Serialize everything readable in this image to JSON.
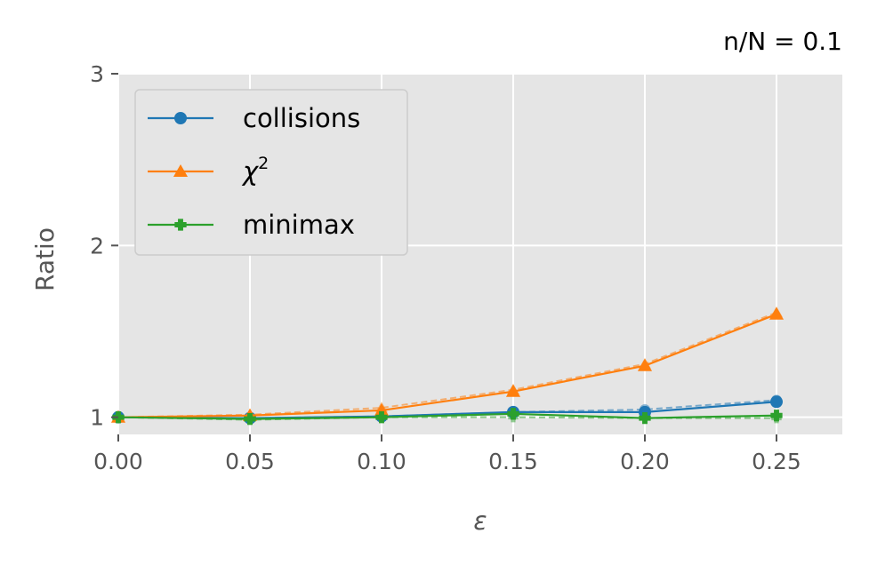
{
  "chart_data": {
    "type": "line",
    "title": "n/N = 0.1",
    "xlabel": "ε",
    "ylabel": "Ratio",
    "xlim": [
      0.0,
      0.275
    ],
    "ylim": [
      0.9,
      3.0
    ],
    "xticks": [
      0.0,
      0.05,
      0.1,
      0.15,
      0.2,
      0.25
    ],
    "xtick_labels": [
      "0.00",
      "0.05",
      "0.10",
      "0.15",
      "0.20",
      "0.25"
    ],
    "yticks": [
      1,
      2,
      3
    ],
    "ytick_labels": [
      "1",
      "2",
      "3"
    ],
    "grid": true,
    "legend_position": "top-left",
    "x": [
      0.0,
      0.05,
      0.1,
      0.15,
      0.2,
      0.25
    ],
    "series": [
      {
        "name": "collisions",
        "name_base": "collisions",
        "name_sup": "",
        "color": "#1f77b4",
        "marker": "circle",
        "values": [
          1.0,
          0.995,
          1.005,
          1.03,
          1.03,
          1.09
        ],
        "dashed_values": [
          1.0,
          0.995,
          1.005,
          1.03,
          1.045,
          1.1
        ]
      },
      {
        "name": "χ²",
        "name_base": "χ",
        "name_sup": "2",
        "color": "#ff7f0e",
        "marker": "triangle",
        "values": [
          1.0,
          1.01,
          1.04,
          1.15,
          1.3,
          1.6
        ],
        "dashed_values": [
          1.0,
          1.015,
          1.055,
          1.16,
          1.31,
          1.61
        ]
      },
      {
        "name": "minimax",
        "name_base": "minimax",
        "name_sup": "",
        "color": "#2ca02c",
        "marker": "plus-filled",
        "values": [
          1.0,
          0.99,
          1.0,
          1.02,
          0.995,
          1.01
        ],
        "dashed_values": [
          1.0,
          0.985,
          1.0,
          1.0,
          0.995,
          0.995
        ]
      }
    ]
  }
}
